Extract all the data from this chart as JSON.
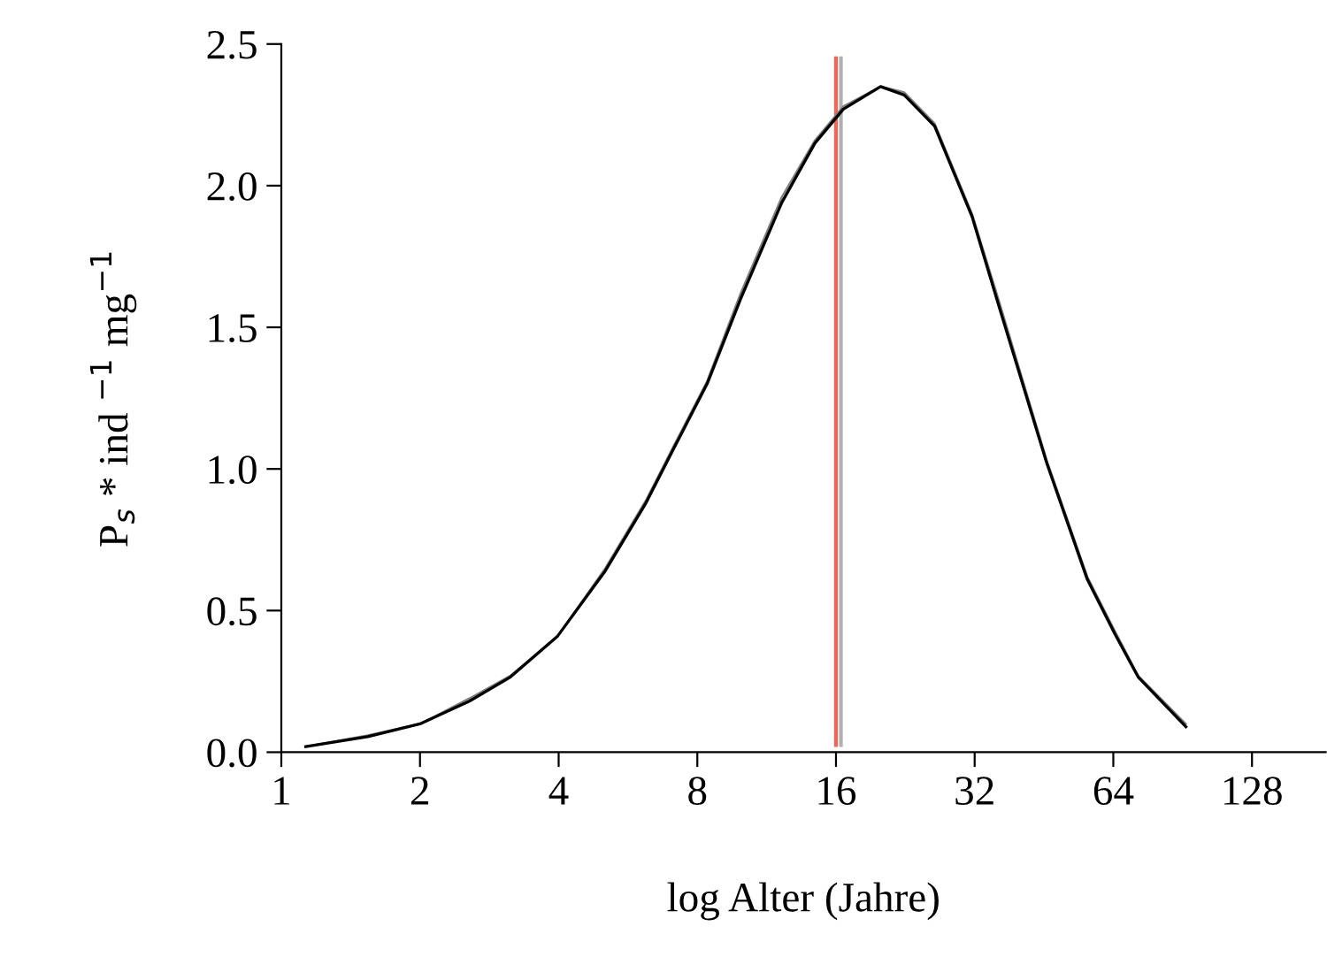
{
  "chart_data": {
    "type": "line",
    "xlabel": "log Alter (Jahre)",
    "ylabel": "P$_{s}$ * ind $^{−1}$ mg$^{−1}$",
    "log": "x",
    "xlim": [
      1,
      185
    ],
    "xticks": [
      1,
      2,
      4,
      8,
      16,
      32,
      64,
      128
    ],
    "ylim": [
      0,
      2.5
    ],
    "yticks": [
      {
        "value": 0,
        "label": "0.0"
      },
      0.5,
      {
        "value": 1,
        "label": "1.0"
      },
      1.5,
      {
        "value": 2,
        "label": "2.0"
      },
      2.5
    ],
    "grid": false,
    "legend": false,
    "marker": "none",
    "line_style": "solid",
    "series": [
      {
        "color": "#000000",
        "x": [
          1.13,
          1.54,
          2.0,
          2.56,
          3.14,
          3.98,
          5.05,
          6.19,
          7.1,
          8.4,
          9.93,
          12.2,
          14.4,
          16.6,
          20.0,
          22.5,
          26.2,
          31.6,
          36.2,
          45.9,
          56.2,
          64.4,
          72.5,
          92
        ],
        "values": [
          0.02,
          0.055,
          0.1,
          0.18,
          0.265,
          0.41,
          0.64,
          0.88,
          1.07,
          1.3,
          1.6,
          1.94,
          2.15,
          2.27,
          2.35,
          2.32,
          2.21,
          1.89,
          1.57,
          1.02,
          0.61,
          0.42,
          0.265,
          0.09
        ]
      },
      {
        "color": "#808080",
        "x": [
          1.13,
          1.54,
          2.0,
          2.56,
          3.14,
          3.98,
          5.05,
          6.19,
          7.1,
          8.4,
          9.93,
          12.2,
          14.4,
          16.6,
          20.0,
          22.5,
          26.2,
          31.6,
          36.2,
          45.9,
          56.2,
          64.4,
          72.5,
          92
        ],
        "values": [
          0.02,
          0.06,
          0.1,
          0.19,
          0.27,
          0.41,
          0.65,
          0.89,
          1.08,
          1.31,
          1.62,
          1.96,
          2.16,
          2.28,
          2.35,
          2.33,
          2.22,
          1.9,
          1.59,
          1.03,
          0.62,
          0.43,
          0.27,
          0.1
        ]
      }
    ],
    "ref_lines": [
      {
        "axis": "x",
        "value": 16,
        "color": "#ff6050"
      },
      {
        "axis": "x",
        "value": 16.4,
        "color": "#b0b0b0"
      }
    ]
  }
}
